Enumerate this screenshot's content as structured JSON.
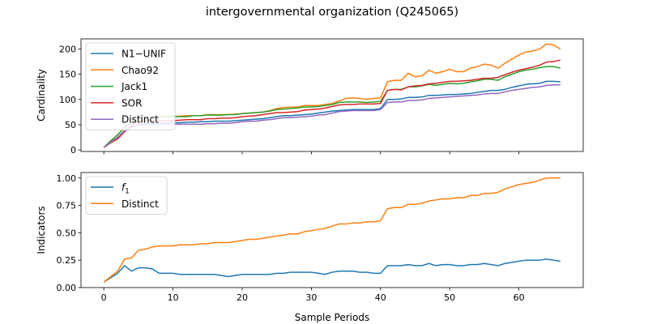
{
  "figure": {
    "title": "intergovernmental organization (Q245065)",
    "xlabel": "Sample Periods"
  },
  "chart_data": [
    {
      "type": "line",
      "ylabel": "Cardinality",
      "xlim": [
        -3.3,
        69.3
      ],
      "ylim": [
        -3,
        220
      ],
      "xticks": [
        0,
        10,
        20,
        30,
        40,
        50,
        60
      ],
      "yticks": [
        0,
        50,
        100,
        150,
        200
      ],
      "ytick_labels": [
        "0",
        "50",
        "100",
        "150",
        "200"
      ],
      "legend_position": "top-left",
      "grid": false,
      "x": [
        0,
        1,
        2,
        3,
        4,
        5,
        6,
        7,
        8,
        9,
        10,
        11,
        12,
        13,
        14,
        15,
        16,
        17,
        18,
        19,
        20,
        21,
        22,
        23,
        24,
        25,
        26,
        27,
        28,
        29,
        30,
        31,
        32,
        33,
        34,
        35,
        36,
        37,
        38,
        39,
        40,
        41,
        42,
        43,
        44,
        45,
        46,
        47,
        48,
        49,
        50,
        51,
        52,
        53,
        54,
        55,
        56,
        57,
        58,
        59,
        60,
        61,
        62,
        63,
        64,
        65,
        66
      ],
      "series": [
        {
          "name": "N1−UNIF",
          "color": "#1f77b4",
          "values": [
            5,
            15,
            25,
            38,
            45,
            50,
            52,
            53,
            53,
            53,
            54,
            54,
            55,
            55,
            56,
            56,
            57,
            57,
            57,
            58,
            59,
            60,
            61,
            62,
            64,
            66,
            68,
            68,
            69,
            70,
            71,
            73,
            75,
            77,
            78,
            79,
            80,
            80,
            80,
            80,
            82,
            100,
            100,
            101,
            104,
            104,
            105,
            108,
            108,
            109,
            110,
            110,
            111,
            112,
            114,
            116,
            118,
            118,
            120,
            124,
            127,
            130,
            131,
            132,
            136,
            136,
            135
          ]
        },
        {
          "name": "Chao92",
          "color": "#ff7f0e",
          "values": [
            5,
            18,
            30,
            45,
            55,
            62,
            65,
            66,
            66,
            66,
            66,
            67,
            68,
            68,
            68,
            70,
            70,
            70,
            70,
            71,
            72,
            73,
            74,
            75,
            78,
            82,
            84,
            85,
            85,
            88,
            88,
            88,
            90,
            92,
            97,
            102,
            103,
            102,
            100,
            102,
            103,
            135,
            138,
            138,
            152,
            145,
            147,
            158,
            152,
            155,
            160,
            155,
            155,
            162,
            165,
            170,
            168,
            162,
            172,
            180,
            188,
            194,
            196,
            200,
            210,
            208,
            200
          ]
        },
        {
          "name": "Jack1",
          "color": "#2ca02c",
          "values": [
            5,
            18,
            30,
            44,
            55,
            62,
            65,
            66,
            66,
            66,
            66,
            66,
            66,
            68,
            68,
            69,
            69,
            69,
            70,
            70,
            72,
            73,
            74,
            75,
            77,
            80,
            81,
            82,
            83,
            85,
            85,
            86,
            88,
            90,
            94,
            95,
            95,
            95,
            94,
            95,
            96,
            118,
            120,
            120,
            125,
            125,
            127,
            130,
            128,
            130,
            132,
            131,
            132,
            135,
            137,
            140,
            140,
            138,
            145,
            150,
            155,
            158,
            160,
            163,
            165,
            165,
            162
          ]
        },
        {
          "name": "SOR",
          "color": "#d62728",
          "values": [
            5,
            14,
            22,
            36,
            48,
            56,
            58,
            58,
            58,
            58,
            58,
            59,
            60,
            60,
            60,
            62,
            62,
            63,
            63,
            64,
            66,
            67,
            68,
            70,
            72,
            74,
            74,
            75,
            76,
            79,
            80,
            81,
            83,
            86,
            89,
            90,
            90,
            91,
            91,
            91,
            92,
            118,
            120,
            119,
            125,
            127,
            128,
            131,
            132,
            134,
            136,
            136,
            137,
            138,
            140,
            142,
            142,
            144,
            149,
            154,
            158,
            161,
            164,
            168,
            174,
            175,
            178
          ]
        },
        {
          "name": "Distinct",
          "color": "#9467bd",
          "values": [
            5,
            15,
            25,
            38,
            45,
            49,
            50,
            51,
            51,
            51,
            51,
            51,
            51,
            51,
            51,
            52,
            52,
            53,
            53,
            54,
            56,
            57,
            57,
            59,
            60,
            62,
            64,
            64,
            65,
            66,
            67,
            69,
            70,
            73,
            76,
            77,
            78,
            78,
            78,
            78,
            80,
            94,
            95,
            95,
            98,
            98,
            99,
            102,
            103,
            104,
            105,
            106,
            107,
            108,
            109,
            111,
            112,
            112,
            115,
            118,
            120,
            122,
            124,
            125,
            128,
            129,
            129
          ]
        }
      ]
    },
    {
      "type": "line",
      "ylabel": "Indicators",
      "xlim": [
        -3.3,
        69.3
      ],
      "ylim": [
        0,
        1.05
      ],
      "xticks": [
        0,
        10,
        20,
        30,
        40,
        50,
        60
      ],
      "yticks": [
        0,
        0.25,
        0.5,
        0.75,
        1.0
      ],
      "ytick_labels": [
        "0.00",
        "0.25",
        "0.50",
        "0.75",
        "1.00"
      ],
      "legend_position": "top-left",
      "grid": false,
      "x": [
        0,
        1,
        2,
        3,
        4,
        5,
        6,
        7,
        8,
        9,
        10,
        11,
        12,
        13,
        14,
        15,
        16,
        17,
        18,
        19,
        20,
        21,
        22,
        23,
        24,
        25,
        26,
        27,
        28,
        29,
        30,
        31,
        32,
        33,
        34,
        35,
        36,
        37,
        38,
        39,
        40,
        41,
        42,
        43,
        44,
        45,
        46,
        47,
        48,
        49,
        50,
        51,
        52,
        53,
        54,
        55,
        56,
        57,
        58,
        59,
        60,
        61,
        62,
        63,
        64,
        65,
        66
      ],
      "series": [
        {
          "name": "f1",
          "label_main": "f",
          "label_sub": "1",
          "color": "#1f77b4",
          "values": [
            0.05,
            0.09,
            0.13,
            0.2,
            0.15,
            0.18,
            0.18,
            0.17,
            0.13,
            0.13,
            0.13,
            0.12,
            0.12,
            0.12,
            0.12,
            0.12,
            0.12,
            0.11,
            0.1,
            0.11,
            0.12,
            0.12,
            0.12,
            0.12,
            0.12,
            0.13,
            0.13,
            0.14,
            0.14,
            0.14,
            0.14,
            0.13,
            0.12,
            0.14,
            0.15,
            0.15,
            0.15,
            0.14,
            0.14,
            0.13,
            0.13,
            0.2,
            0.2,
            0.2,
            0.21,
            0.2,
            0.2,
            0.22,
            0.2,
            0.21,
            0.21,
            0.2,
            0.2,
            0.21,
            0.21,
            0.22,
            0.21,
            0.2,
            0.22,
            0.23,
            0.24,
            0.25,
            0.25,
            0.25,
            0.26,
            0.25,
            0.24
          ]
        },
        {
          "name": "Distinct",
          "color": "#ff7f0e",
          "values": [
            0.05,
            0.1,
            0.15,
            0.26,
            0.27,
            0.34,
            0.35,
            0.37,
            0.38,
            0.38,
            0.38,
            0.39,
            0.39,
            0.39,
            0.4,
            0.4,
            0.41,
            0.41,
            0.41,
            0.42,
            0.43,
            0.44,
            0.44,
            0.45,
            0.46,
            0.47,
            0.48,
            0.49,
            0.49,
            0.51,
            0.52,
            0.53,
            0.54,
            0.56,
            0.58,
            0.58,
            0.59,
            0.59,
            0.6,
            0.6,
            0.61,
            0.72,
            0.73,
            0.73,
            0.76,
            0.76,
            0.77,
            0.79,
            0.8,
            0.81,
            0.81,
            0.82,
            0.82,
            0.84,
            0.84,
            0.86,
            0.86,
            0.87,
            0.9,
            0.92,
            0.94,
            0.95,
            0.96,
            0.98,
            1.0,
            1.0,
            1.0
          ]
        }
      ]
    }
  ]
}
